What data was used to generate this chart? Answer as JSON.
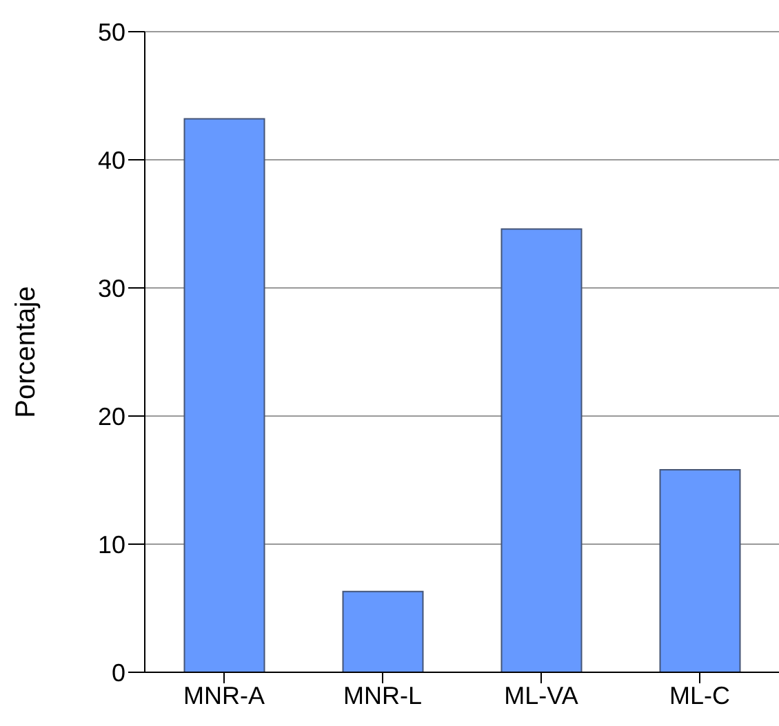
{
  "chart_data": {
    "type": "bar",
    "ylabel": "Porcentaje",
    "categories": [
      "MNR-A",
      "MNR-L",
      "ML-VA",
      "ML-C"
    ],
    "values": [
      43.2,
      6.3,
      34.6,
      15.8
    ],
    "color": "#6699ff",
    "ylim": [
      0,
      50
    ],
    "yticks": [
      0,
      10,
      20,
      30,
      40,
      50
    ],
    "grid": "y"
  }
}
